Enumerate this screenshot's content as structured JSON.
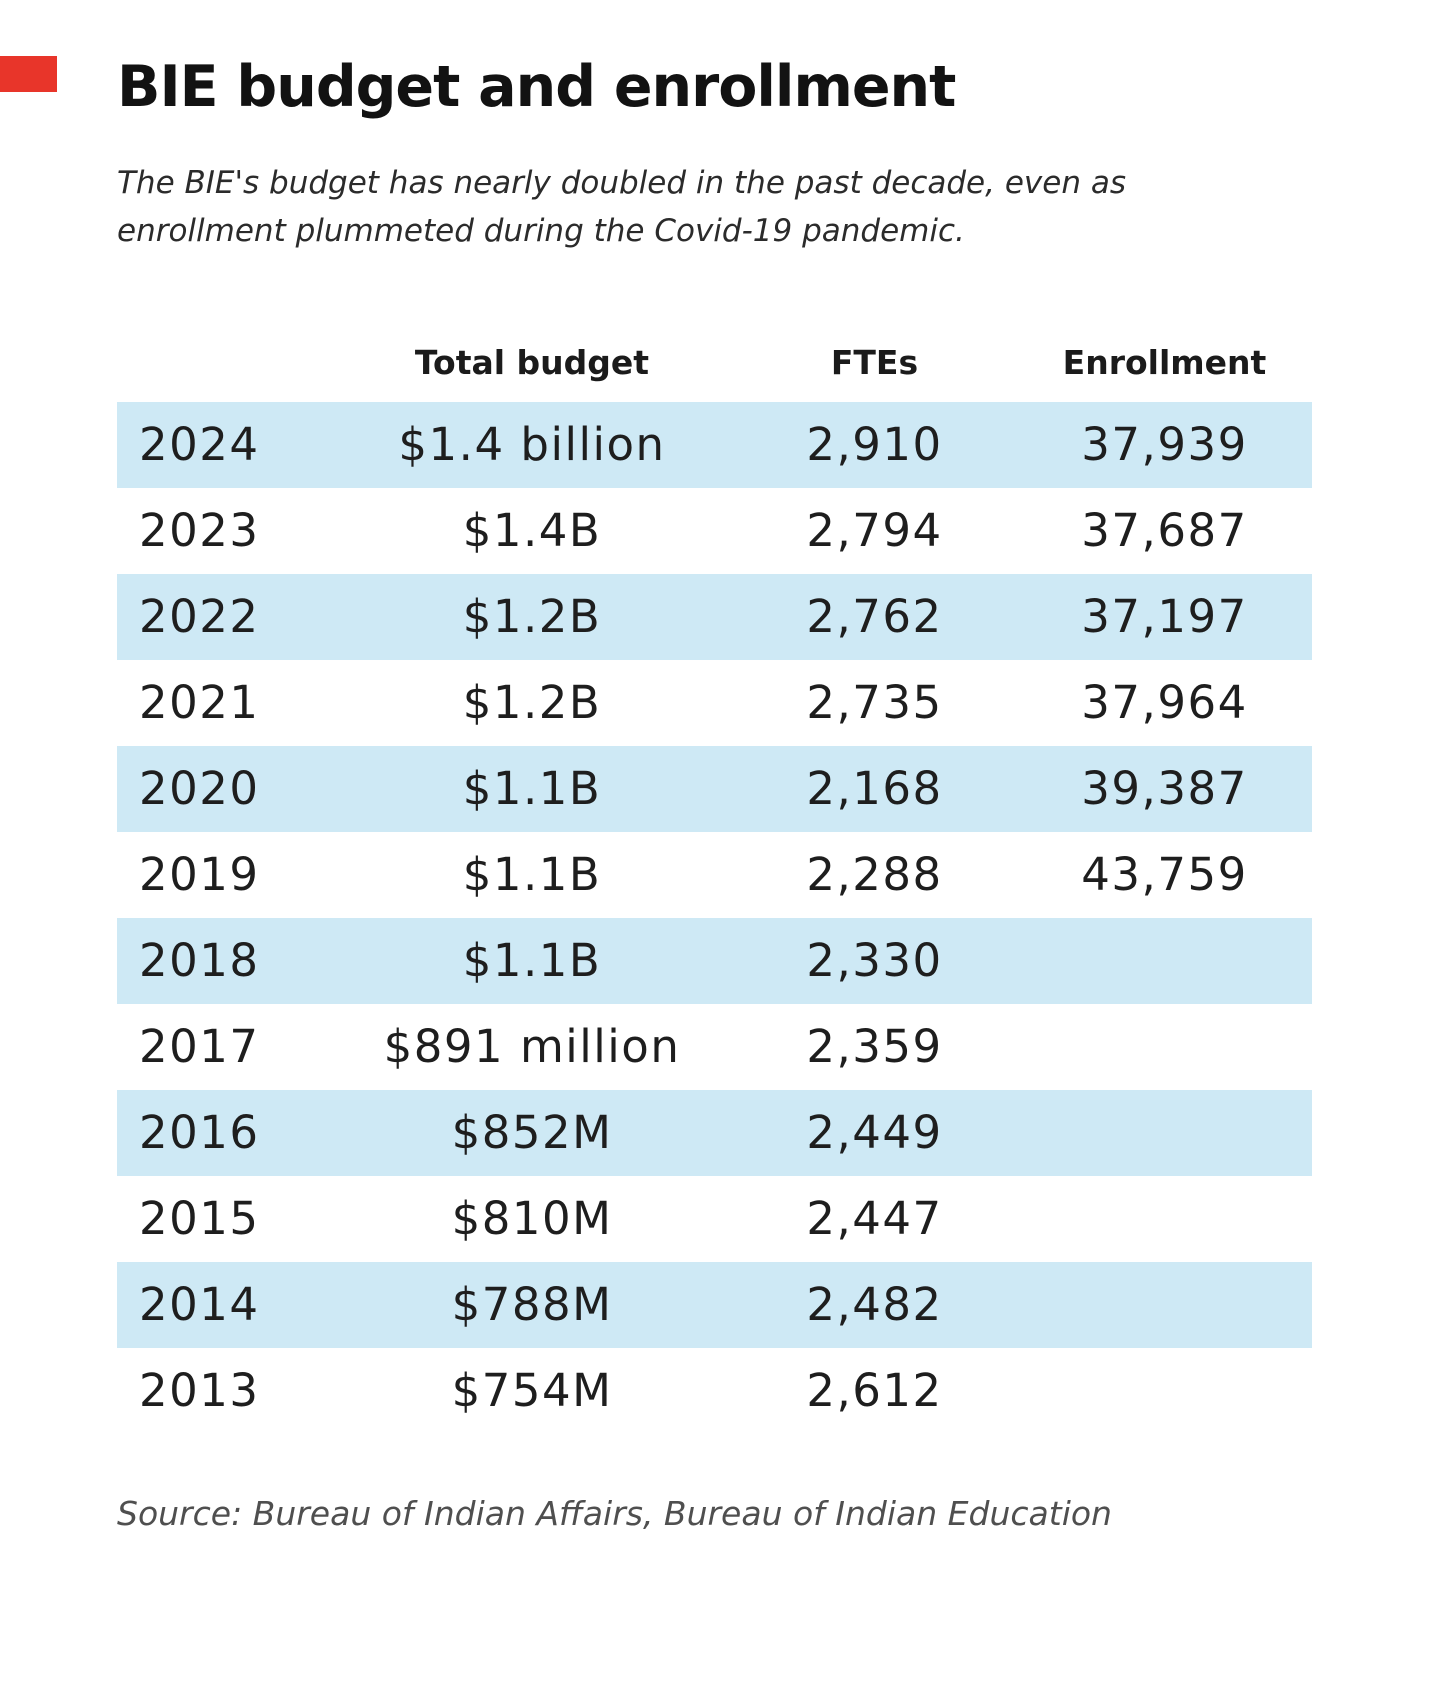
{
  "header": {
    "title": "BIE budget and enrollment",
    "subtitle": "The BIE's budget has nearly doubled in the past decade, even as enrollment plummeted during the Covid-19 pandemic."
  },
  "footer": {
    "source": "Source: Bureau of Indian Affairs, Bureau of Indian Education"
  },
  "colors": {
    "row_highlight": "#cee9f5",
    "corner_marker_red": "#e8352a",
    "text_dark": "#1e1e1e"
  },
  "chart_data": {
    "type": "table",
    "title": "BIE budget and enrollment",
    "columns": [
      "Total budget",
      "FTEs",
      "Enrollment"
    ],
    "row_header_column": "year",
    "rows": [
      {
        "year": "2024",
        "budget": "$1.4 billion",
        "ftes": "2,910",
        "enrollment": "37,939"
      },
      {
        "year": "2023",
        "budget": "$1.4B",
        "ftes": "2,794",
        "enrollment": "37,687"
      },
      {
        "year": "2022",
        "budget": "$1.2B",
        "ftes": "2,762",
        "enrollment": "37,197"
      },
      {
        "year": "2021",
        "budget": "$1.2B",
        "ftes": "2,735",
        "enrollment": "37,964"
      },
      {
        "year": "2020",
        "budget": "$1.1B",
        "ftes": "2,168",
        "enrollment": "39,387"
      },
      {
        "year": "2019",
        "budget": "$1.1B",
        "ftes": "2,288",
        "enrollment": "43,759"
      },
      {
        "year": "2018",
        "budget": "$1.1B",
        "ftes": "2,330",
        "enrollment": ""
      },
      {
        "year": "2017",
        "budget": "$891 million",
        "ftes": "2,359",
        "enrollment": ""
      },
      {
        "year": "2016",
        "budget": "$852M",
        "ftes": "2,449",
        "enrollment": ""
      },
      {
        "year": "2015",
        "budget": "$810M",
        "ftes": "2,447",
        "enrollment": ""
      },
      {
        "year": "2014",
        "budget": "$788M",
        "ftes": "2,482",
        "enrollment": ""
      },
      {
        "year": "2013",
        "budget": "$754M",
        "ftes": "2,612",
        "enrollment": ""
      }
    ],
    "striping": "alternate rows highlighted light blue starting with 2024",
    "grid": false,
    "legend_position": "none"
  }
}
